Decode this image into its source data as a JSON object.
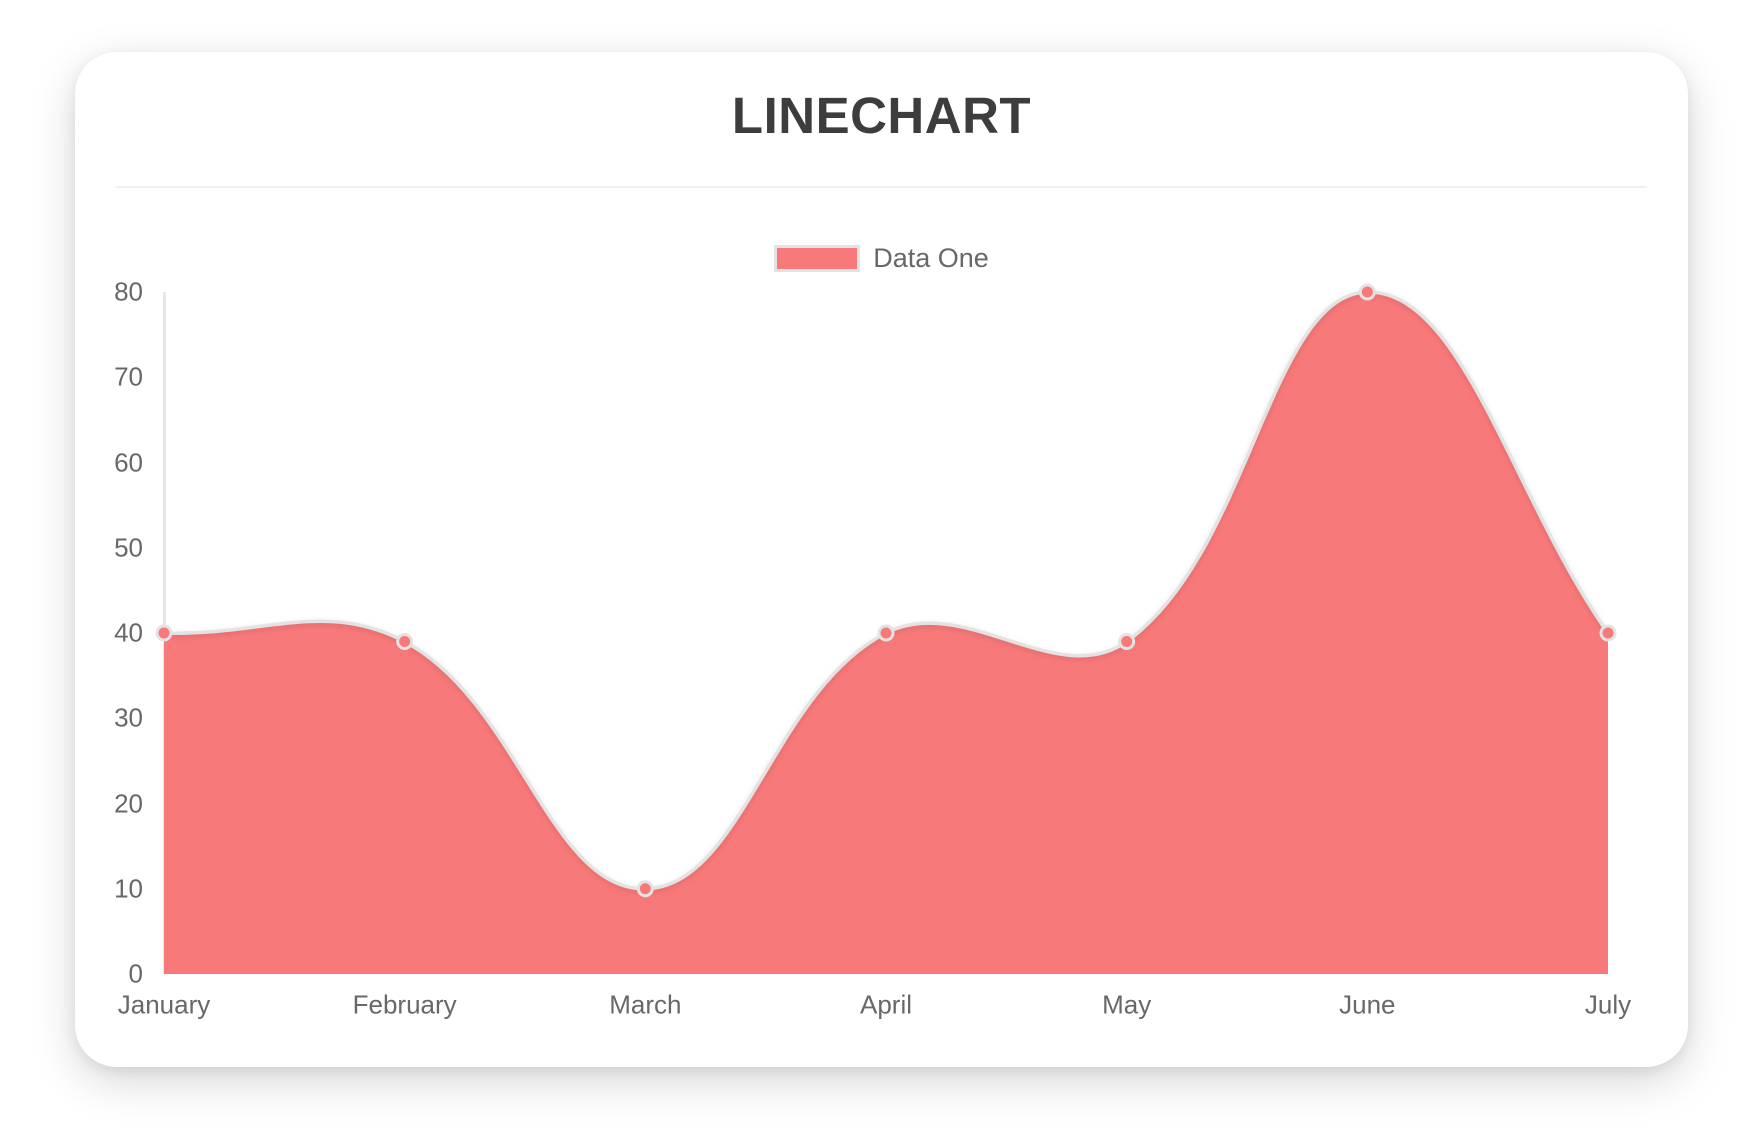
{
  "card": {
    "title": "LINECHART"
  },
  "chart_data": {
    "type": "area",
    "title": "LINECHART",
    "categories": [
      "January",
      "February",
      "March",
      "April",
      "May",
      "June",
      "July"
    ],
    "series": [
      {
        "name": "Data One",
        "values": [
          40,
          39,
          10,
          40,
          39,
          80,
          40
        ]
      }
    ],
    "xlabel": "",
    "ylabel": "",
    "ylim": [
      0,
      80
    ],
    "y_ticks": [
      0,
      10,
      20,
      30,
      40,
      50,
      60,
      70,
      80
    ],
    "grid": "off",
    "axis_line": "left-vertical-only",
    "legend_position": "top-center",
    "smooth": true,
    "bezier_tension": 0.4,
    "point_style": "circle",
    "colors": {
      "fill": "#f87979",
      "line": "#e3e3e3",
      "axis": "#e7e7e7",
      "tick_text": "#686868",
      "title_text": "#3d3d3d"
    }
  }
}
